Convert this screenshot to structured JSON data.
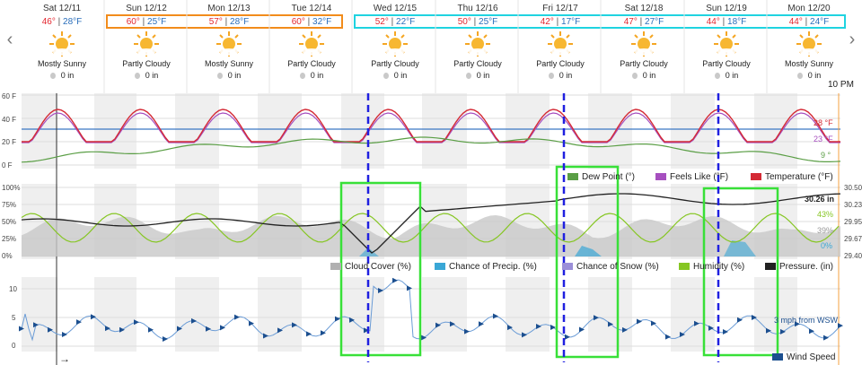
{
  "forecast": {
    "days": [
      {
        "date": "Sat 12/11",
        "hi": "46°",
        "lo": "28°F",
        "condition": "Mostly Sunny",
        "precip": "0 in"
      },
      {
        "date": "Sun 12/12",
        "hi": "60°",
        "lo": "25°F",
        "condition": "Partly Cloudy",
        "precip": "0 in"
      },
      {
        "date": "Mon 12/13",
        "hi": "57°",
        "lo": "28°F",
        "condition": "Mostly Sunny",
        "precip": "0 in"
      },
      {
        "date": "Tue 12/14",
        "hi": "60°",
        "lo": "32°F",
        "condition": "Partly Cloudy",
        "precip": "0 in"
      },
      {
        "date": "Wed 12/15",
        "hi": "52°",
        "lo": "22°F",
        "condition": "Partly Cloudy",
        "precip": "0 in"
      },
      {
        "date": "Thu 12/16",
        "hi": "50°",
        "lo": "25°F",
        "condition": "Partly Cloudy",
        "precip": "0 in"
      },
      {
        "date": "Fri 12/17",
        "hi": "42°",
        "lo": "17°F",
        "condition": "Partly Cloudy",
        "precip": "0 in"
      },
      {
        "date": "Sat 12/18",
        "hi": "47°",
        "lo": "27°F",
        "condition": "Partly Cloudy",
        "precip": "0 in"
      },
      {
        "date": "Sun 12/19",
        "hi": "44°",
        "lo": "18°F",
        "condition": "Partly Cloudy",
        "precip": "0 in"
      },
      {
        "date": "Mon 12/20",
        "hi": "44°",
        "lo": "24°F",
        "condition": "Mostly Sunny",
        "precip": "0 in"
      }
    ],
    "separator": "|",
    "time_label": "10 PM"
  },
  "temp_panel": {
    "y_ticks": [
      "60 F",
      "40 F",
      "20 F",
      "0 F"
    ],
    "end_labels": {
      "temperature": "28 °F",
      "feels_like": "23 °F",
      "dew_point": "9 °"
    },
    "legend": {
      "dew_point": "Dew Point (°)",
      "feels_like": "Feels Like (°F)",
      "temperature": "Temperature (°F)"
    }
  },
  "cloud_panel": {
    "y_ticks": [
      "100%",
      "75%",
      "50%",
      "25%",
      "0%"
    ],
    "right_ticks": [
      "30.50",
      "30.23",
      "29.95",
      "29.67",
      "29.40"
    ],
    "end_labels": {
      "pressure": "30.26 in",
      "humidity": "43%",
      "cloud": "39%",
      "precip": "0%"
    },
    "legend": {
      "cloud": "Cloud Cover (%)",
      "precip": "Chance of Precip. (%)",
      "snow": "Chance of Snow (%)",
      "humidity": "Humidity (%)",
      "pressure": "Pressure. (in)"
    }
  },
  "wind_panel": {
    "y_ticks": [
      "10",
      "5",
      "0"
    ],
    "end_label": "3 mph from WSW",
    "legend": "Wind Speed",
    "arrow": "→"
  },
  "colors": {
    "temperature": "#d42a35",
    "feels_like": "#a64fbf",
    "dew_point": "#5a9e45",
    "cloud": "#b0b0b0",
    "precip": "#3aa7d6",
    "snow": "#9b8fd8",
    "humidity": "#86c623",
    "pressure": "#222222",
    "wind": "#6b9cd6",
    "wind_arrow": "#1c4f8f",
    "highlight_orange": "#f28c1b",
    "highlight_cyan": "#1fd3e0",
    "green_box": "#38e038",
    "blue_dash": "#2020e0"
  }
}
